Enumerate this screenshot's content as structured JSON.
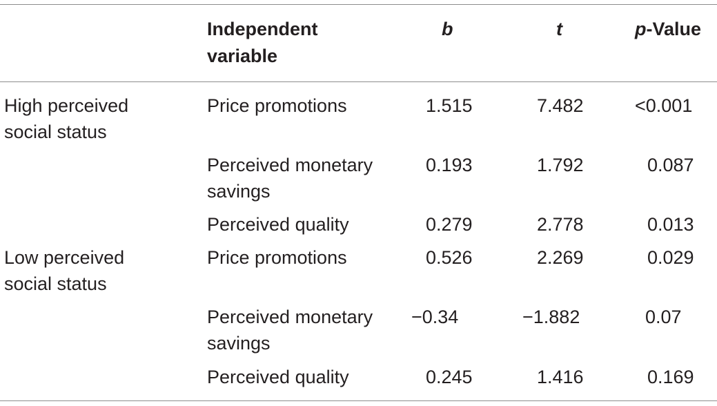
{
  "table": {
    "header": {
      "independent_variable": [
        "Independent",
        "variable"
      ],
      "b": "b",
      "t": "t",
      "p_italic": "p",
      "p_rest": "-Value"
    },
    "groups": [
      {
        "label": [
          "High perceived",
          "social status"
        ],
        "rows": [
          {
            "variable": [
              "Price promotions"
            ],
            "b": "1.515",
            "t": "7.482",
            "p": "<0.001"
          },
          {
            "variable": [
              "Perceived monetary",
              "savings"
            ],
            "b": "0.193",
            "t": "1.792",
            "p": "0.087"
          },
          {
            "variable": [
              "Perceived quality"
            ],
            "b": "0.279",
            "t": "2.778",
            "p": "0.013"
          }
        ]
      },
      {
        "label": [
          "Low perceived",
          "social status"
        ],
        "rows": [
          {
            "variable": [
              "Price promotions"
            ],
            "b": "0.526",
            "t": "2.269",
            "p": "0.029"
          },
          {
            "variable": [
              "Perceived monetary",
              "savings"
            ],
            "b": "−0.34",
            "t": "−1.882",
            "p": "0.07"
          },
          {
            "variable": [
              "Perceived quality"
            ],
            "b": "0.245",
            "t": "1.416",
            "p": "0.169"
          }
        ]
      }
    ]
  }
}
